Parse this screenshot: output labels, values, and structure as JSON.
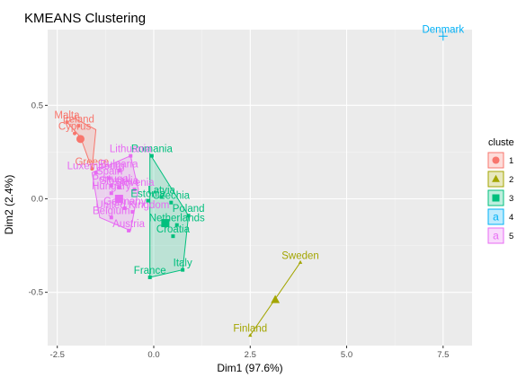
{
  "chart_data": {
    "type": "scatter",
    "title": "KMEANS Clustering",
    "xlabel": "Dim1 (97.6%)",
    "ylabel": "Dim2 (2.4%)",
    "xlim": [
      -2.75,
      8.25
    ],
    "ylim": [
      -0.785,
      0.905
    ],
    "x_ticks": [
      -2.5,
      0.0,
      2.5,
      5.0,
      7.5
    ],
    "x_tick_labels": [
      "-2.5",
      "0.0",
      "2.5",
      "5.0",
      "7.5"
    ],
    "y_ticks": [
      -0.5,
      0.0,
      0.5
    ],
    "y_tick_labels": [
      "-0.5",
      "0.0",
      "0.5"
    ],
    "grid": true,
    "legend": {
      "title": "cluste",
      "position": "right",
      "labels": [
        "1",
        "2",
        "3",
        "4",
        "5"
      ]
    },
    "clusters": [
      {
        "name": "1",
        "color": "#F8766D",
        "shape": "circle",
        "center": [
          -1.9,
          0.32
        ],
        "hull": [
          [
            -2.25,
            0.41
          ],
          [
            -2.05,
            0.43
          ],
          [
            -1.5,
            0.37
          ],
          [
            -1.6,
            0.16
          ],
          [
            -1.9,
            0.33
          ]
        ],
        "points": [
          {
            "label": "Malta",
            "x": -2.25,
            "y": 0.41
          },
          {
            "label": "Ireland",
            "x": -1.95,
            "y": 0.39
          },
          {
            "label": "Cyprus",
            "x": -2.05,
            "y": 0.35
          },
          {
            "label": "Greece",
            "x": -1.6,
            "y": 0.16
          }
        ]
      },
      {
        "name": "2",
        "color": "#A3A500",
        "shape": "triangle",
        "center": [
          3.15,
          -0.54
        ],
        "hull": [
          [
            2.5,
            -0.73
          ],
          [
            3.8,
            -0.34
          ]
        ],
        "points": [
          {
            "label": "Sweden",
            "x": 3.8,
            "y": -0.34
          },
          {
            "label": "Finland",
            "x": 2.5,
            "y": -0.73
          }
        ]
      },
      {
        "name": "3",
        "color": "#00BF7D",
        "shape": "square",
        "center": [
          0.3,
          -0.13
        ],
        "hull": [
          [
            -0.1,
            0.24
          ],
          [
            0.9,
            -0.09
          ],
          [
            0.75,
            -0.38
          ],
          [
            -0.1,
            -0.42
          ]
        ],
        "points": [
          {
            "label": "Romania",
            "x": -0.05,
            "y": 0.23
          },
          {
            "label": "Estonia",
            "x": -0.15,
            "y": -0.01
          },
          {
            "label": "Latvia",
            "x": 0.2,
            "y": 0.01
          },
          {
            "label": "Czechia",
            "x": 0.45,
            "y": -0.02
          },
          {
            "label": "Poland",
            "x": 0.9,
            "y": -0.09
          },
          {
            "label": "Netherlands",
            "x": 0.6,
            "y": -0.14
          },
          {
            "label": "Croatia",
            "x": 0.5,
            "y": -0.2
          },
          {
            "label": "Italy",
            "x": 0.75,
            "y": -0.38
          },
          {
            "label": "France",
            "x": -0.1,
            "y": -0.42
          }
        ]
      },
      {
        "name": "4",
        "color": "#00B0F6",
        "shape": "square",
        "center": [
          7.5,
          0.87
        ],
        "hull": [],
        "points": [
          {
            "label": "Denmark",
            "x": 7.5,
            "y": 0.87
          }
        ]
      },
      {
        "name": "5",
        "color": "#E76BF3",
        "shape": "square",
        "center": [
          -0.9,
          0.0
        ],
        "hull": [
          [
            -1.6,
            0.14
          ],
          [
            -0.6,
            0.23
          ],
          [
            -0.4,
            0.05
          ],
          [
            -0.6,
            -0.17
          ],
          [
            -1.4,
            -0.1
          ]
        ],
        "points": [
          {
            "label": "Lithuania",
            "x": -0.6,
            "y": 0.23
          },
          {
            "label": "Luxembourg",
            "x": -1.5,
            "y": 0.14
          },
          {
            "label": "Bulgaria",
            "x": -0.9,
            "y": 0.15
          },
          {
            "label": "Spain",
            "x": -1.15,
            "y": 0.11
          },
          {
            "label": "Portugal",
            "x": -1.1,
            "y": 0.07
          },
          {
            "label": "Slovakia",
            "x": -0.9,
            "y": 0.06
          },
          {
            "label": "Hungary",
            "x": -1.1,
            "y": 0.03
          },
          {
            "label": "Slovenia",
            "x": -0.5,
            "y": 0.05
          },
          {
            "label": "Germany",
            "x": -0.75,
            "y": -0.05
          },
          {
            "label": "United Kingdom",
            "x": -0.55,
            "y": -0.07
          },
          {
            "label": "Belgium",
            "x": -1.1,
            "y": -0.1
          },
          {
            "label": "Austria",
            "x": -0.65,
            "y": -0.17
          }
        ]
      }
    ]
  }
}
